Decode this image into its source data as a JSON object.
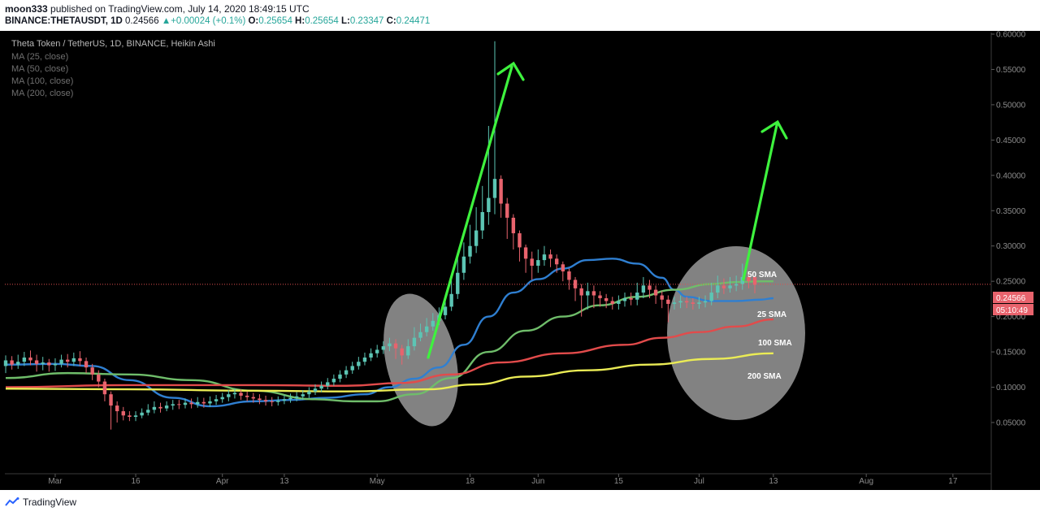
{
  "header": {
    "line1": {
      "user": "moon333",
      "published": "published on TradingView.com, July 14, 2020 18:49:15 UTC"
    },
    "line2": {
      "symbol": "BINANCE:THETAUSDT, 1D",
      "last": "0.24566",
      "change": "+0.00024 (+0.1%)",
      "o_label": "O:",
      "o": "0.25654",
      "h_label": "H:",
      "h": "0.25654",
      "l_label": "L:",
      "l": "0.23347",
      "c_label": "C:",
      "c": "0.24471"
    }
  },
  "legend": {
    "title": "Theta Token / TetherUS, 1D, BINANCE, Heikin Ashi",
    "items": [
      "MA (25, close)",
      "MA (50, close)",
      "MA (100, close)",
      "MA (200, close)"
    ]
  },
  "footer": {
    "brand": "TradingView"
  },
  "colors": {
    "background": "#000000",
    "up": "#5cc5b4",
    "down": "#e8636d",
    "ma25": "#2f7fd1",
    "ma50": "#6fbd6a",
    "ma100": "#e24b4b",
    "ma200": "#eaeb55",
    "arrow": "#3ef23e",
    "priceLine": "#e05050"
  },
  "chart_data": {
    "type": "candlestick",
    "title": "Theta Token / TetherUS, 1D, BINANCE, Heikin Ashi",
    "x_tick_labels": [
      "Mar",
      "16",
      "Apr",
      "13",
      "May",
      "18",
      "Jun",
      "15",
      "Jul",
      "13",
      "Aug",
      "17"
    ],
    "y_tick_labels": [
      "0.05000",
      "0.10000",
      "0.15000",
      "0.20000",
      "0.25000",
      "0.30000",
      "0.35000",
      "0.40000",
      "0.45000",
      "0.50000",
      "0.55000",
      "0.60000"
    ],
    "ylim": [
      0.0,
      0.62
    ],
    "last_price": "0.24566",
    "countdown": "05:10:49",
    "annotations": [
      "50 SMA",
      "25 SMA",
      "100 SMA",
      "200 SMA"
    ],
    "candles": [
      {
        "o": 0.13,
        "c": 0.138,
        "h": 0.145,
        "l": 0.12
      },
      {
        "o": 0.138,
        "c": 0.132,
        "h": 0.144,
        "l": 0.125
      },
      {
        "o": 0.132,
        "c": 0.136,
        "h": 0.146,
        "l": 0.126
      },
      {
        "o": 0.136,
        "c": 0.142,
        "h": 0.15,
        "l": 0.13
      },
      {
        "o": 0.142,
        "c": 0.138,
        "h": 0.152,
        "l": 0.131
      },
      {
        "o": 0.138,
        "c": 0.133,
        "h": 0.146,
        "l": 0.122
      },
      {
        "o": 0.133,
        "c": 0.135,
        "h": 0.143,
        "l": 0.124
      },
      {
        "o": 0.135,
        "c": 0.131,
        "h": 0.14,
        "l": 0.122
      },
      {
        "o": 0.131,
        "c": 0.133,
        "h": 0.141,
        "l": 0.123
      },
      {
        "o": 0.133,
        "c": 0.139,
        "h": 0.146,
        "l": 0.128
      },
      {
        "o": 0.139,
        "c": 0.136,
        "h": 0.147,
        "l": 0.128
      },
      {
        "o": 0.136,
        "c": 0.141,
        "h": 0.149,
        "l": 0.13
      },
      {
        "o": 0.141,
        "c": 0.137,
        "h": 0.151,
        "l": 0.13
      },
      {
        "o": 0.137,
        "c": 0.128,
        "h": 0.142,
        "l": 0.12
      },
      {
        "o": 0.128,
        "c": 0.118,
        "h": 0.133,
        "l": 0.11
      },
      {
        "o": 0.118,
        "c": 0.108,
        "h": 0.124,
        "l": 0.1
      },
      {
        "o": 0.108,
        "c": 0.09,
        "h": 0.112,
        "l": 0.08
      },
      {
        "o": 0.09,
        "c": 0.074,
        "h": 0.094,
        "l": 0.04
      },
      {
        "o": 0.074,
        "c": 0.066,
        "h": 0.08,
        "l": 0.05
      },
      {
        "o": 0.066,
        "c": 0.06,
        "h": 0.072,
        "l": 0.053
      },
      {
        "o": 0.06,
        "c": 0.058,
        "h": 0.066,
        "l": 0.052
      },
      {
        "o": 0.058,
        "c": 0.06,
        "h": 0.066,
        "l": 0.052
      },
      {
        "o": 0.06,
        "c": 0.064,
        "h": 0.07,
        "l": 0.056
      },
      {
        "o": 0.064,
        "c": 0.068,
        "h": 0.076,
        "l": 0.06
      },
      {
        "o": 0.068,
        "c": 0.072,
        "h": 0.08,
        "l": 0.063
      },
      {
        "o": 0.072,
        "c": 0.07,
        "h": 0.078,
        "l": 0.064
      },
      {
        "o": 0.07,
        "c": 0.074,
        "h": 0.08,
        "l": 0.066
      },
      {
        "o": 0.074,
        "c": 0.076,
        "h": 0.082,
        "l": 0.068
      },
      {
        "o": 0.076,
        "c": 0.075,
        "h": 0.082,
        "l": 0.069
      },
      {
        "o": 0.075,
        "c": 0.078,
        "h": 0.084,
        "l": 0.07
      },
      {
        "o": 0.078,
        "c": 0.076,
        "h": 0.084,
        "l": 0.07
      },
      {
        "o": 0.076,
        "c": 0.079,
        "h": 0.086,
        "l": 0.071
      },
      {
        "o": 0.079,
        "c": 0.077,
        "h": 0.085,
        "l": 0.071
      },
      {
        "o": 0.077,
        "c": 0.08,
        "h": 0.087,
        "l": 0.072
      },
      {
        "o": 0.08,
        "c": 0.083,
        "h": 0.089,
        "l": 0.075
      },
      {
        "o": 0.083,
        "c": 0.086,
        "h": 0.092,
        "l": 0.078
      },
      {
        "o": 0.086,
        "c": 0.09,
        "h": 0.096,
        "l": 0.08
      },
      {
        "o": 0.09,
        "c": 0.092,
        "h": 0.098,
        "l": 0.084
      },
      {
        "o": 0.092,
        "c": 0.088,
        "h": 0.097,
        "l": 0.082
      },
      {
        "o": 0.088,
        "c": 0.086,
        "h": 0.094,
        "l": 0.08
      },
      {
        "o": 0.086,
        "c": 0.084,
        "h": 0.092,
        "l": 0.078
      },
      {
        "o": 0.084,
        "c": 0.082,
        "h": 0.09,
        "l": 0.076
      },
      {
        "o": 0.082,
        "c": 0.08,
        "h": 0.088,
        "l": 0.074
      },
      {
        "o": 0.08,
        "c": 0.079,
        "h": 0.086,
        "l": 0.073
      },
      {
        "o": 0.079,
        "c": 0.081,
        "h": 0.087,
        "l": 0.074
      },
      {
        "o": 0.081,
        "c": 0.083,
        "h": 0.089,
        "l": 0.076
      },
      {
        "o": 0.083,
        "c": 0.085,
        "h": 0.091,
        "l": 0.078
      },
      {
        "o": 0.085,
        "c": 0.087,
        "h": 0.093,
        "l": 0.08
      },
      {
        "o": 0.087,
        "c": 0.09,
        "h": 0.096,
        "l": 0.082
      },
      {
        "o": 0.09,
        "c": 0.094,
        "h": 0.1,
        "l": 0.085
      },
      {
        "o": 0.094,
        "c": 0.098,
        "h": 0.104,
        "l": 0.089
      },
      {
        "o": 0.098,
        "c": 0.102,
        "h": 0.108,
        "l": 0.093
      },
      {
        "o": 0.102,
        "c": 0.107,
        "h": 0.113,
        "l": 0.097
      },
      {
        "o": 0.107,
        "c": 0.112,
        "h": 0.118,
        "l": 0.102
      },
      {
        "o": 0.112,
        "c": 0.118,
        "h": 0.124,
        "l": 0.107
      },
      {
        "o": 0.118,
        "c": 0.124,
        "h": 0.13,
        "l": 0.113
      },
      {
        "o": 0.124,
        "c": 0.13,
        "h": 0.136,
        "l": 0.119
      },
      {
        "o": 0.13,
        "c": 0.136,
        "h": 0.143,
        "l": 0.125
      },
      {
        "o": 0.136,
        "c": 0.142,
        "h": 0.149,
        "l": 0.131
      },
      {
        "o": 0.142,
        "c": 0.148,
        "h": 0.155,
        "l": 0.137
      },
      {
        "o": 0.148,
        "c": 0.153,
        "h": 0.16,
        "l": 0.142
      },
      {
        "o": 0.153,
        "c": 0.158,
        "h": 0.165,
        "l": 0.147
      },
      {
        "o": 0.158,
        "c": 0.162,
        "h": 0.17,
        "l": 0.151
      },
      {
        "o": 0.162,
        "c": 0.155,
        "h": 0.168,
        "l": 0.14
      },
      {
        "o": 0.155,
        "c": 0.145,
        "h": 0.16,
        "l": 0.132
      },
      {
        "o": 0.145,
        "c": 0.158,
        "h": 0.168,
        "l": 0.14
      },
      {
        "o": 0.158,
        "c": 0.17,
        "h": 0.185,
        "l": 0.152
      },
      {
        "o": 0.17,
        "c": 0.178,
        "h": 0.19,
        "l": 0.165
      },
      {
        "o": 0.178,
        "c": 0.186,
        "h": 0.198,
        "l": 0.172
      },
      {
        "o": 0.186,
        "c": 0.194,
        "h": 0.205,
        "l": 0.18
      },
      {
        "o": 0.194,
        "c": 0.202,
        "h": 0.213,
        "l": 0.188
      },
      {
        "o": 0.202,
        "c": 0.214,
        "h": 0.23,
        "l": 0.196
      },
      {
        "o": 0.214,
        "c": 0.232,
        "h": 0.252,
        "l": 0.208
      },
      {
        "o": 0.232,
        "c": 0.262,
        "h": 0.285,
        "l": 0.225
      },
      {
        "o": 0.262,
        "c": 0.285,
        "h": 0.305,
        "l": 0.252
      },
      {
        "o": 0.285,
        "c": 0.3,
        "h": 0.33,
        "l": 0.275
      },
      {
        "o": 0.3,
        "c": 0.322,
        "h": 0.355,
        "l": 0.29
      },
      {
        "o": 0.322,
        "c": 0.348,
        "h": 0.385,
        "l": 0.31
      },
      {
        "o": 0.348,
        "c": 0.368,
        "h": 0.47,
        "l": 0.33
      },
      {
        "o": 0.368,
        "c": 0.395,
        "h": 0.59,
        "l": 0.345
      },
      {
        "o": 0.395,
        "c": 0.36,
        "h": 0.4,
        "l": 0.34
      },
      {
        "o": 0.36,
        "c": 0.34,
        "h": 0.368,
        "l": 0.31
      },
      {
        "o": 0.34,
        "c": 0.318,
        "h": 0.345,
        "l": 0.295
      },
      {
        "o": 0.318,
        "c": 0.298,
        "h": 0.322,
        "l": 0.278
      },
      {
        "o": 0.298,
        "c": 0.282,
        "h": 0.302,
        "l": 0.262
      },
      {
        "o": 0.282,
        "c": 0.272,
        "h": 0.292,
        "l": 0.252
      },
      {
        "o": 0.272,
        "c": 0.28,
        "h": 0.295,
        "l": 0.262
      },
      {
        "o": 0.28,
        "c": 0.288,
        "h": 0.3,
        "l": 0.272
      },
      {
        "o": 0.288,
        "c": 0.282,
        "h": 0.295,
        "l": 0.27
      },
      {
        "o": 0.282,
        "c": 0.274,
        "h": 0.288,
        "l": 0.262
      },
      {
        "o": 0.274,
        "c": 0.264,
        "h": 0.278,
        "l": 0.25
      },
      {
        "o": 0.264,
        "c": 0.252,
        "h": 0.268,
        "l": 0.238
      },
      {
        "o": 0.252,
        "c": 0.24,
        "h": 0.256,
        "l": 0.222
      },
      {
        "o": 0.24,
        "c": 0.23,
        "h": 0.246,
        "l": 0.2
      },
      {
        "o": 0.23,
        "c": 0.236,
        "h": 0.248,
        "l": 0.21
      },
      {
        "o": 0.236,
        "c": 0.23,
        "h": 0.244,
        "l": 0.212
      },
      {
        "o": 0.23,
        "c": 0.226,
        "h": 0.236,
        "l": 0.214
      },
      {
        "o": 0.226,
        "c": 0.222,
        "h": 0.232,
        "l": 0.212
      },
      {
        "o": 0.222,
        "c": 0.218,
        "h": 0.228,
        "l": 0.21
      },
      {
        "o": 0.218,
        "c": 0.222,
        "h": 0.23,
        "l": 0.21
      },
      {
        "o": 0.222,
        "c": 0.226,
        "h": 0.234,
        "l": 0.214
      },
      {
        "o": 0.226,
        "c": 0.224,
        "h": 0.234,
        "l": 0.216
      },
      {
        "o": 0.224,
        "c": 0.234,
        "h": 0.248,
        "l": 0.216
      },
      {
        "o": 0.234,
        "c": 0.244,
        "h": 0.256,
        "l": 0.226
      },
      {
        "o": 0.244,
        "c": 0.238,
        "h": 0.252,
        "l": 0.226
      },
      {
        "o": 0.238,
        "c": 0.23,
        "h": 0.244,
        "l": 0.218
      },
      {
        "o": 0.23,
        "c": 0.224,
        "h": 0.236,
        "l": 0.212
      },
      {
        "o": 0.224,
        "c": 0.218,
        "h": 0.23,
        "l": 0.192
      },
      {
        "o": 0.218,
        "c": 0.22,
        "h": 0.228,
        "l": 0.21
      },
      {
        "o": 0.22,
        "c": 0.222,
        "h": 0.23,
        "l": 0.212
      },
      {
        "o": 0.222,
        "c": 0.22,
        "h": 0.228,
        "l": 0.212
      },
      {
        "o": 0.22,
        "c": 0.218,
        "h": 0.226,
        "l": 0.21
      },
      {
        "o": 0.218,
        "c": 0.22,
        "h": 0.228,
        "l": 0.211
      },
      {
        "o": 0.22,
        "c": 0.222,
        "h": 0.23,
        "l": 0.213
      },
      {
        "o": 0.222,
        "c": 0.234,
        "h": 0.248,
        "l": 0.216
      },
      {
        "o": 0.234,
        "c": 0.244,
        "h": 0.258,
        "l": 0.226
      },
      {
        "o": 0.244,
        "c": 0.24,
        "h": 0.254,
        "l": 0.232
      },
      {
        "o": 0.24,
        "c": 0.244,
        "h": 0.256,
        "l": 0.234
      },
      {
        "o": 0.244,
        "c": 0.246,
        "h": 0.258,
        "l": 0.236
      },
      {
        "o": 0.246,
        "c": 0.256,
        "h": 0.275,
        "l": 0.238
      },
      {
        "o": 0.256,
        "c": 0.25,
        "h": 0.262,
        "l": 0.24
      },
      {
        "o": 0.256,
        "c": 0.245,
        "h": 0.257,
        "l": 0.233
      }
    ],
    "ma_series": [
      {
        "name": "MA (25, close)",
        "points": [
          [
            0,
            0.132
          ],
          [
            8,
            0.133
          ],
          [
            14,
            0.13
          ],
          [
            20,
            0.11
          ],
          [
            27,
            0.085
          ],
          [
            33,
            0.073
          ],
          [
            40,
            0.08
          ],
          [
            46,
            0.082
          ],
          [
            52,
            0.085
          ],
          [
            58,
            0.09
          ],
          [
            62,
            0.1
          ],
          [
            66,
            0.112
          ],
          [
            70,
            0.128
          ],
          [
            74,
            0.16
          ],
          [
            78,
            0.2
          ],
          [
            82,
            0.234
          ],
          [
            86,
            0.253
          ],
          [
            90,
            0.268
          ],
          [
            94,
            0.28
          ],
          [
            98,
            0.282
          ],
          [
            102,
            0.275
          ],
          [
            106,
            0.255
          ],
          [
            108,
            0.238
          ],
          [
            110,
            0.228
          ],
          [
            114,
            0.222
          ],
          [
            118,
            0.222
          ],
          [
            122,
            0.224
          ],
          [
            124,
            0.226
          ]
        ]
      },
      {
        "name": "MA (50, close)",
        "points": [
          [
            0,
            0.113
          ],
          [
            10,
            0.12
          ],
          [
            20,
            0.118
          ],
          [
            30,
            0.11
          ],
          [
            40,
            0.095
          ],
          [
            50,
            0.083
          ],
          [
            56,
            0.08
          ],
          [
            60,
            0.08
          ],
          [
            66,
            0.09
          ],
          [
            72,
            0.113
          ],
          [
            78,
            0.15
          ],
          [
            84,
            0.18
          ],
          [
            90,
            0.2
          ],
          [
            96,
            0.216
          ],
          [
            102,
            0.228
          ],
          [
            108,
            0.238
          ],
          [
            114,
            0.246
          ],
          [
            118,
            0.249
          ],
          [
            122,
            0.25
          ],
          [
            124,
            0.25
          ]
        ]
      },
      {
        "name": "MA (100, close)",
        "points": [
          [
            0,
            0.1
          ],
          [
            20,
            0.103
          ],
          [
            40,
            0.103
          ],
          [
            55,
            0.102
          ],
          [
            64,
            0.106
          ],
          [
            72,
            0.118
          ],
          [
            80,
            0.135
          ],
          [
            90,
            0.148
          ],
          [
            100,
            0.16
          ],
          [
            106,
            0.17
          ],
          [
            112,
            0.178
          ],
          [
            118,
            0.186
          ],
          [
            124,
            0.196
          ]
        ]
      },
      {
        "name": "MA (200, close)",
        "points": [
          [
            0,
            0.098
          ],
          [
            20,
            0.097
          ],
          [
            40,
            0.095
          ],
          [
            55,
            0.094
          ],
          [
            68,
            0.097
          ],
          [
            76,
            0.104
          ],
          [
            84,
            0.115
          ],
          [
            94,
            0.124
          ],
          [
            104,
            0.132
          ],
          [
            114,
            0.14
          ],
          [
            124,
            0.148
          ]
        ]
      }
    ]
  }
}
